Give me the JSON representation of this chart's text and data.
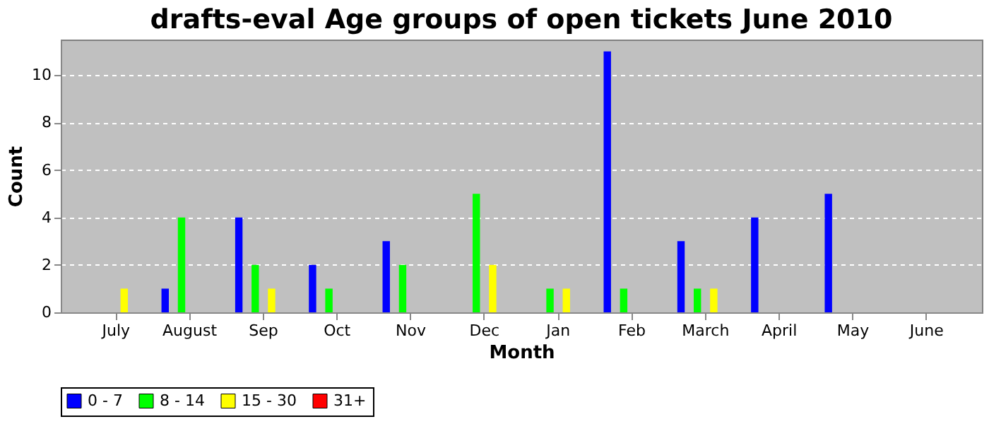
{
  "chart_data": {
    "type": "bar",
    "title": "drafts-eval Age groups of open tickets June 2010",
    "xlabel": "Month",
    "ylabel": "Count",
    "categories": [
      "July",
      "August",
      "Sep",
      "Oct",
      "Nov",
      "Dec",
      "Jan",
      "Feb",
      "March",
      "April",
      "May",
      "June"
    ],
    "series": [
      {
        "name": "0 - 7",
        "color": "#0000ff",
        "values": [
          0,
          1,
          4,
          2,
          3,
          0,
          0,
          11,
          3,
          4,
          5,
          0
        ]
      },
      {
        "name": "8 - 14",
        "color": "#00ff00",
        "values": [
          0,
          4,
          2,
          1,
          2,
          5,
          1,
          1,
          1,
          0,
          0,
          0
        ]
      },
      {
        "name": "15 - 30",
        "color": "#ffff00",
        "values": [
          1,
          0,
          1,
          0,
          0,
          2,
          1,
          0,
          1,
          0,
          0,
          0
        ]
      },
      {
        "name": "31+",
        "color": "#ff0000",
        "values": [
          0,
          0,
          0,
          0,
          0,
          0,
          0,
          0,
          0,
          0,
          0,
          0
        ]
      }
    ],
    "ylim": [
      0,
      11.5
    ],
    "yticks": [
      0,
      2,
      4,
      6,
      8,
      10
    ],
    "grid": "y",
    "legend": "bottom"
  }
}
